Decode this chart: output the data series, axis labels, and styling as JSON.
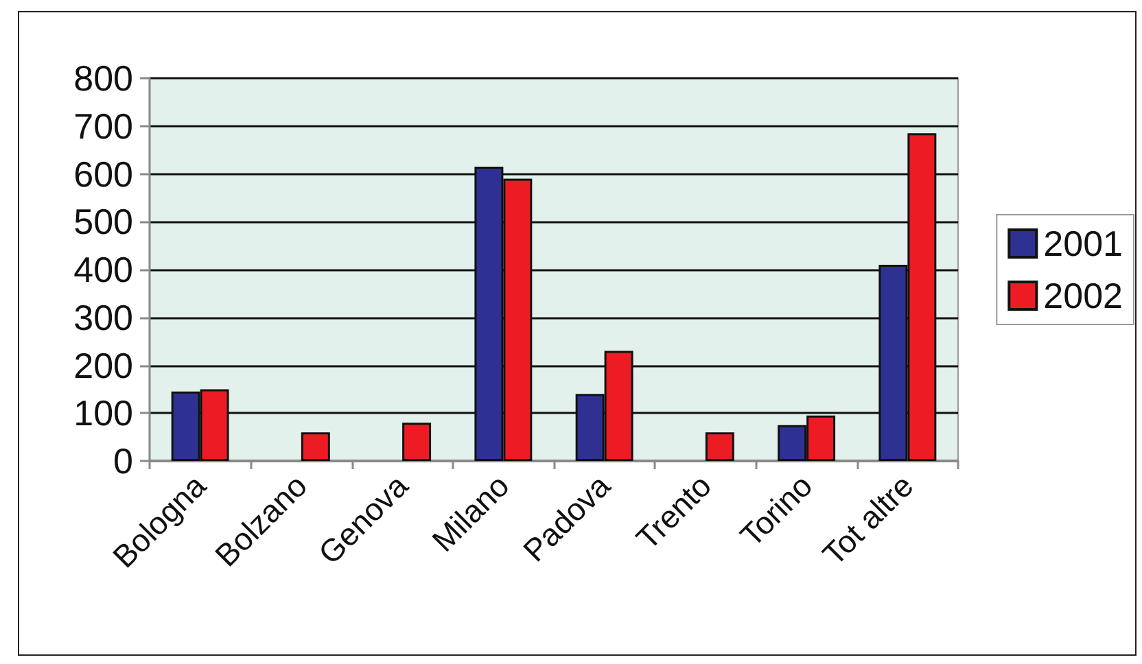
{
  "chart_data": {
    "type": "bar",
    "categories": [
      "Bologna",
      "Bolzano",
      "Genova",
      "Milano",
      "Padova",
      "Trento",
      "Torino",
      "Tot altre"
    ],
    "series": [
      {
        "name": "2001",
        "color": "#2e3192",
        "values": [
          145,
          null,
          null,
          615,
          140,
          null,
          75,
          410
        ]
      },
      {
        "name": "2002",
        "color": "#ed1c24",
        "values": [
          150,
          60,
          80,
          590,
          230,
          60,
          95,
          685
        ]
      }
    ],
    "ylim": [
      0,
      800
    ],
    "yticks": [
      0,
      100,
      200,
      300,
      400,
      500,
      600,
      700,
      800
    ],
    "grid": "y",
    "legend": "right"
  }
}
